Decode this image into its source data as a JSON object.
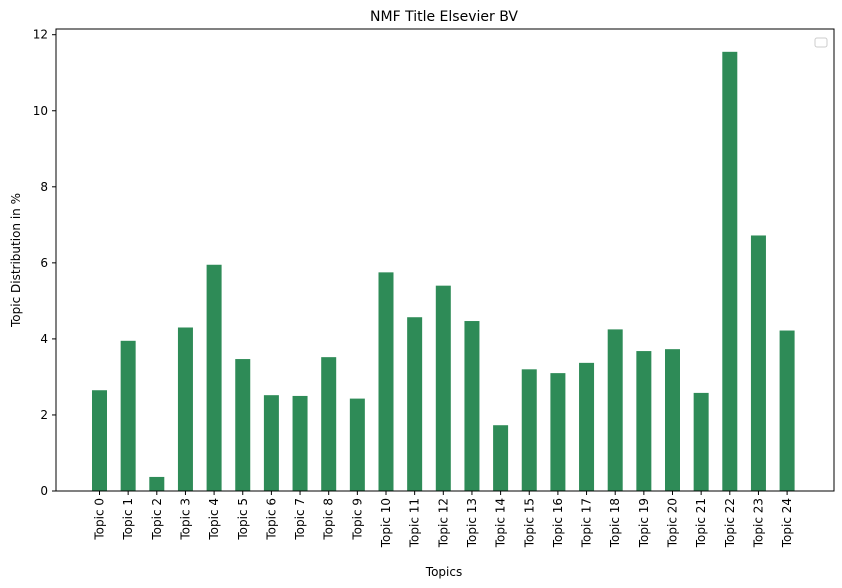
{
  "chart_data": {
    "type": "bar",
    "title": "NMF Title Elsevier BV",
    "xlabel": "Topics",
    "ylabel": "Topic Distribution in %",
    "categories": [
      "Topic 0",
      "Topic 1",
      "Topic 2",
      "Topic 3",
      "Topic 4",
      "Topic 5",
      "Topic 6",
      "Topic 7",
      "Topic 8",
      "Topic 9",
      "Topic 10",
      "Topic 11",
      "Topic 12",
      "Topic 13",
      "Topic 14",
      "Topic 15",
      "Topic 16",
      "Topic 17",
      "Topic 18",
      "Topic 19",
      "Topic 20",
      "Topic 21",
      "Topic 22",
      "Topic 23",
      "Topic 24"
    ],
    "values": [
      2.65,
      3.95,
      0.37,
      4.3,
      5.95,
      3.47,
      2.52,
      2.5,
      3.52,
      2.43,
      5.75,
      4.57,
      5.4,
      4.47,
      1.73,
      3.2,
      3.1,
      3.37,
      4.25,
      3.68,
      3.73,
      2.58,
      11.55,
      6.72,
      4.22
    ],
    "ylim": [
      0,
      12.15
    ],
    "yticks": [
      0,
      2,
      4,
      6,
      8,
      10,
      12
    ],
    "bar_color": "#2e8b57",
    "grid": false,
    "legend": "top-right (empty)"
  }
}
